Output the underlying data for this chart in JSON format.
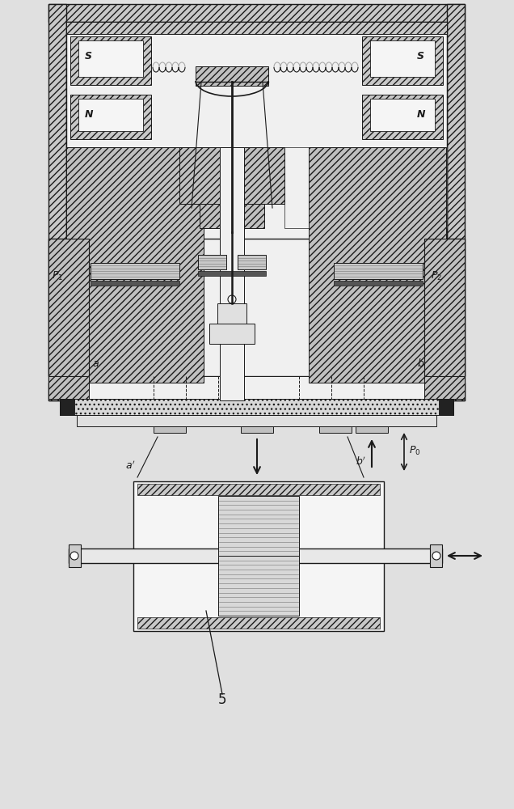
{
  "bg_color": "#e0e0e0",
  "lc": "#1a1a1a",
  "hatch_fc": "#d0d0d0",
  "white_fc": "#f8f8f8",
  "gray_fc": "#c0c0c0",
  "dark_fc": "#444444",
  "label_S1": "S",
  "label_S2": "S",
  "label_N1": "N",
  "label_N2": "N",
  "label_P1": "$P_1$",
  "label_P2": "$P_2$",
  "label_a": "a",
  "label_b": "b",
  "label_a_prime": "$a'$",
  "label_b_prime": "$b'$",
  "label_P0": "$P_0$",
  "label_5": "5"
}
